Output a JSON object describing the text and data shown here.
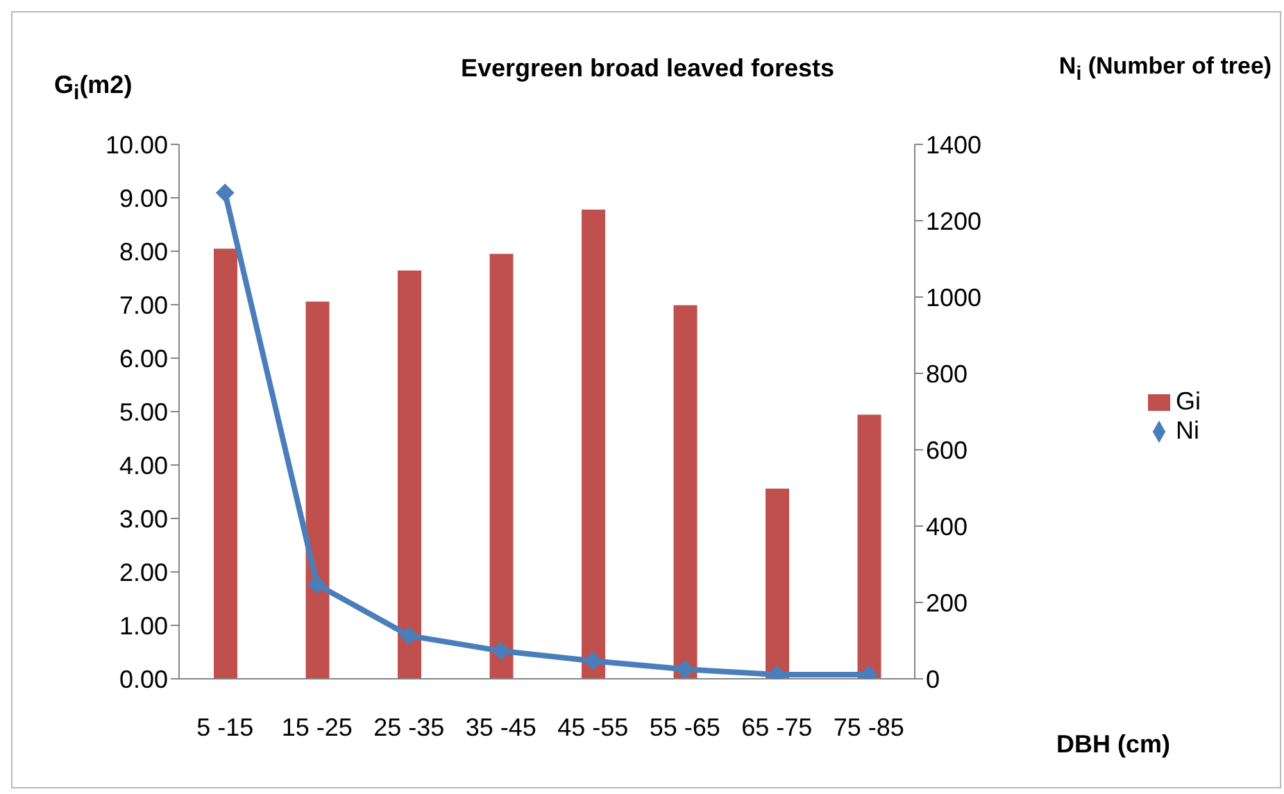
{
  "chart_data": {
    "type": "bar",
    "title": "Evergreen broad leaved forests",
    "xlabel": "DBH (cm)",
    "ylabel": "G$_{i}$(m2)",
    "y2label": "N$_{i}$ (Number of tree)",
    "categories": [
      "5 -15",
      "15 -25",
      "25 -35",
      "35 -45",
      "45 -55",
      "55 -65",
      "65 -75",
      "75 -85"
    ],
    "series": [
      {
        "name": "Gi",
        "color": "#c0504d",
        "values": [
          8.05,
          7.06,
          7.64,
          7.95,
          8.78,
          6.99,
          3.56,
          4.94
        ]
      },
      {
        "name": "Ni",
        "type": "line",
        "axis": "y2",
        "color": "#4a7ebb",
        "values": [
          1273,
          247,
          113,
          73,
          47,
          25,
          11,
          11
        ]
      }
    ],
    "ylim": [
      0,
      10
    ],
    "yticks": [
      {
        "value": 0,
        "label": "0.00"
      },
      {
        "value": 1,
        "label": "1.00"
      },
      {
        "value": 2,
        "label": "2.00"
      },
      {
        "value": 3,
        "label": "3.00"
      },
      {
        "value": 4,
        "label": "4.00"
      },
      {
        "value": 5,
        "label": "5.00"
      },
      {
        "value": 6,
        "label": "6.00"
      },
      {
        "value": 7,
        "label": "7.00"
      },
      {
        "value": 8,
        "label": "8.00"
      },
      {
        "value": 9,
        "label": "9.00"
      },
      {
        "value": 10,
        "label": "10.00"
      }
    ],
    "y2lim": [
      0,
      1400
    ],
    "y2ticks": [
      0,
      200,
      400,
      600,
      800,
      1000,
      1200,
      1400
    ],
    "legend": "right",
    "marker": "diamond",
    "line_style": "solid"
  }
}
